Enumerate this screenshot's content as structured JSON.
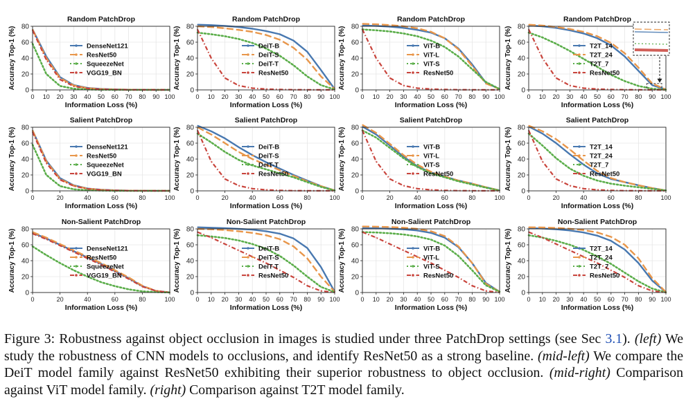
{
  "figure": {
    "x_axis_label": "Information Loss (%)",
    "y_axis_label": "Accuracy Top-1 (%)",
    "row_titles": [
      "Random PatchDrop",
      "Salient PatchDrop",
      "Non-Salient PatchDrop"
    ],
    "x_ticks": [
      0,
      10,
      20,
      30,
      40,
      50,
      60,
      70,
      80,
      90,
      100
    ],
    "x_ticks_coarse": [
      0,
      20,
      40,
      60,
      80,
      100
    ],
    "y_ticks": [
      0,
      20,
      40,
      60,
      80
    ],
    "colors": {
      "cnn_top": "#4878b0",
      "cnn_second": "#e8964a",
      "cnn_third": "#5aad49",
      "resnet_red": "#c9443c"
    }
  },
  "chart_data": [
    {
      "type": "line",
      "title": "Random PatchDrop",
      "group": "CNN",
      "xlabel": "Information Loss (%)",
      "ylabel": "Accuracy Top-1 (%)",
      "xlim": [
        0,
        100
      ],
      "ylim": [
        0,
        80
      ],
      "x": [
        0,
        10,
        20,
        30,
        40,
        50,
        60,
        70,
        80,
        90,
        100
      ],
      "series": [
        {
          "name": "DenseNet121",
          "values": [
            76,
            42,
            16,
            6,
            2.5,
            1.2,
            0.6,
            0.3,
            0.2,
            0.1,
            0.1
          ]
        },
        {
          "name": "ResNet50",
          "values": [
            76,
            40,
            15,
            5.5,
            2.2,
            1,
            0.5,
            0.3,
            0.2,
            0.1,
            0.1
          ]
        },
        {
          "name": "SqueezeNet",
          "values": [
            58,
            20,
            5,
            1.5,
            0.6,
            0.3,
            0.2,
            0.1,
            0.1,
            0.1,
            0.1
          ]
        },
        {
          "name": "VGG19_BN",
          "values": [
            75,
            38,
            13,
            4.5,
            1.8,
            0.8,
            0.4,
            0.2,
            0.1,
            0.1,
            0.1
          ]
        }
      ]
    },
    {
      "type": "line",
      "title": "Random PatchDrop",
      "group": "DeiT",
      "xlabel": "Information Loss (%)",
      "ylabel": "Accuracy Top-1 (%)",
      "xlim": [
        0,
        100
      ],
      "ylim": [
        0,
        80
      ],
      "x": [
        0,
        10,
        20,
        30,
        40,
        50,
        60,
        70,
        80,
        90,
        100
      ],
      "series": [
        {
          "name": "DeiT-B",
          "values": [
            82,
            81.5,
            80.5,
            79,
            77,
            74,
            70,
            62,
            48,
            25,
            1
          ]
        },
        {
          "name": "DeiT-S",
          "values": [
            80,
            79,
            77.5,
            75.5,
            73,
            69,
            63,
            53,
            38,
            17,
            1
          ]
        },
        {
          "name": "DeiT-T",
          "values": [
            72,
            70,
            67.5,
            64,
            59,
            52,
            43,
            31,
            17,
            6,
            0.5
          ]
        },
        {
          "name": "ResNet50",
          "values": [
            76,
            40,
            15,
            5.5,
            2.2,
            1,
            0.5,
            0.3,
            0.2,
            0.1,
            0.1
          ]
        }
      ]
    },
    {
      "type": "line",
      "title": "Random PatchDrop",
      "group": "ViT",
      "xlabel": "Information Loss (%)",
      "ylabel": "Accuracy Top-1 (%)",
      "xlim": [
        0,
        100
      ],
      "ylim": [
        0,
        80
      ],
      "x": [
        0,
        10,
        20,
        30,
        40,
        50,
        60,
        70,
        80,
        90,
        100
      ],
      "series": [
        {
          "name": "ViT-B",
          "values": [
            81,
            80.5,
            79.5,
            78,
            75.5,
            72,
            65,
            52,
            32,
            9,
            1
          ]
        },
        {
          "name": "ViT-L",
          "values": [
            83,
            82.5,
            81.5,
            80,
            77.5,
            73,
            65,
            51,
            30,
            8,
            1
          ]
        },
        {
          "name": "ViT-S",
          "values": [
            76,
            75,
            73.5,
            71,
            67.5,
            62,
            54,
            42,
            26,
            10,
            1
          ]
        },
        {
          "name": "ResNet50",
          "values": [
            76,
            40,
            15,
            5.5,
            2.2,
            1,
            0.5,
            0.3,
            0.2,
            0.1,
            0.1
          ]
        }
      ]
    },
    {
      "type": "line",
      "title": "Random PatchDrop",
      "group": "T2T",
      "xlabel": "Information Loss (%)",
      "ylabel": "Accuracy Top-1 (%)",
      "xlim": [
        0,
        100
      ],
      "ylim": [
        0,
        80
      ],
      "x": [
        0,
        10,
        20,
        30,
        40,
        50,
        60,
        70,
        80,
        90,
        100
      ],
      "series": [
        {
          "name": "T2T_14",
          "values": [
            81,
            80,
            78,
            75,
            71,
            65,
            56,
            42,
            24,
            6,
            0.5
          ]
        },
        {
          "name": "T2T_24",
          "values": [
            82,
            81,
            79,
            76.5,
            73,
            67.5,
            59,
            46,
            28,
            8,
            0.5
          ]
        },
        {
          "name": "T2T_7",
          "values": [
            72,
            66,
            58,
            49,
            39,
            29,
            19,
            11,
            5,
            1.5,
            0.2
          ]
        },
        {
          "name": "ResNet50",
          "values": [
            76,
            40,
            15,
            5.5,
            2.2,
            1,
            0.5,
            0.3,
            0.2,
            0.1,
            0.1
          ]
        }
      ]
    },
    {
      "type": "line",
      "title": "Salient PatchDrop",
      "group": "CNN",
      "xlabel": "Information Loss (%)",
      "ylabel": "Accuracy Top-1 (%)",
      "xlim": [
        0,
        100
      ],
      "ylim": [
        0,
        80
      ],
      "x": [
        0,
        10,
        20,
        30,
        40,
        50,
        60,
        70,
        80,
        90,
        100
      ],
      "series": [
        {
          "name": "DenseNet121",
          "values": [
            76,
            38,
            16,
            7,
            3,
            1.5,
            0.7,
            0.3,
            0.2,
            0.1,
            0.1
          ]
        },
        {
          "name": "ResNet50",
          "values": [
            76,
            37,
            15,
            6.5,
            2.8,
            1.3,
            0.6,
            0.3,
            0.2,
            0.1,
            0.1
          ]
        },
        {
          "name": "SqueezeNet",
          "values": [
            58,
            20,
            6,
            2,
            0.8,
            0.4,
            0.2,
            0.1,
            0.1,
            0.1,
            0.1
          ]
        },
        {
          "name": "VGG19_BN",
          "values": [
            74,
            35,
            14,
            6,
            2.5,
            1.2,
            0.5,
            0.3,
            0.2,
            0.1,
            0.1
          ]
        }
      ]
    },
    {
      "type": "line",
      "title": "Salient PatchDrop",
      "group": "DeiT",
      "xlabel": "Information Loss (%)",
      "ylabel": "Accuracy Top-1 (%)",
      "xlim": [
        0,
        100
      ],
      "ylim": [
        0,
        80
      ],
      "x": [
        0,
        10,
        20,
        30,
        40,
        50,
        60,
        70,
        80,
        90,
        100
      ],
      "series": [
        {
          "name": "DeiT-B",
          "values": [
            82,
            75,
            66,
            55,
            45,
            36,
            28,
            20,
            13,
            6,
            0.5
          ]
        },
        {
          "name": "DeiT-S",
          "values": [
            80,
            71,
            60,
            49,
            40,
            33,
            26,
            19,
            12,
            6,
            0.5
          ]
        },
        {
          "name": "DeiT-T",
          "values": [
            72,
            61,
            49,
            39,
            32,
            27,
            22,
            17,
            11,
            5,
            0.5
          ]
        },
        {
          "name": "ResNet50",
          "values": [
            76,
            37,
            15,
            6.5,
            2.8,
            1.3,
            0.6,
            0.3,
            0.2,
            0.1,
            0.1
          ]
        }
      ]
    },
    {
      "type": "line",
      "title": "Salient PatchDrop",
      "group": "ViT",
      "xlabel": "Information Loss (%)",
      "ylabel": "Accuracy Top-1 (%)",
      "xlim": [
        0,
        100
      ],
      "ylim": [
        0,
        80
      ],
      "x": [
        0,
        10,
        20,
        30,
        40,
        50,
        60,
        70,
        80,
        90,
        100
      ],
      "series": [
        {
          "name": "ViT-B",
          "values": [
            81,
            71,
            57,
            43,
            31,
            23,
            18,
            13,
            9,
            4.5,
            0.5
          ]
        },
        {
          "name": "ViT-L",
          "values": [
            83,
            73,
            59,
            45,
            33,
            24,
            18,
            13,
            9,
            4.5,
            0.5
          ]
        },
        {
          "name": "ViT-S",
          "values": [
            76,
            67,
            54,
            41,
            30,
            22,
            17,
            12,
            8,
            4,
            0.5
          ]
        },
        {
          "name": "ResNet50",
          "values": [
            76,
            37,
            15,
            6.5,
            2.8,
            1.3,
            0.6,
            0.3,
            0.2,
            0.1,
            0.1
          ]
        }
      ]
    },
    {
      "type": "line",
      "title": "Salient PatchDrop",
      "group": "T2T",
      "xlabel": "Information Loss (%)",
      "ylabel": "Accuracy Top-1 (%)",
      "xlim": [
        0,
        100
      ],
      "ylim": [
        0,
        80
      ],
      "x": [
        0,
        10,
        20,
        30,
        40,
        50,
        60,
        70,
        80,
        90,
        100
      ],
      "series": [
        {
          "name": "T2T_14",
          "values": [
            81,
            72,
            60,
            46,
            33,
            22,
            15,
            11,
            7,
            3.5,
            0.5
          ]
        },
        {
          "name": "T2T_24",
          "values": [
            82,
            75,
            65,
            52,
            38,
            25,
            16,
            11,
            7,
            3.5,
            0.5
          ]
        },
        {
          "name": "T2T_7",
          "values": [
            72,
            57,
            41,
            28,
            19,
            13,
            9,
            6.5,
            4.5,
            2.5,
            0.5
          ]
        },
        {
          "name": "ResNet50",
          "values": [
            76,
            37,
            15,
            6.5,
            2.8,
            1.3,
            0.6,
            0.3,
            0.2,
            0.1,
            0.1
          ]
        }
      ]
    },
    {
      "type": "line",
      "title": "Non-Salient PatchDrop",
      "group": "CNN",
      "xlabel": "Information Loss (%)",
      "ylabel": "Accuracy Top-1 (%)",
      "xlim": [
        0,
        100
      ],
      "ylim": [
        0,
        80
      ],
      "x": [
        0,
        10,
        20,
        30,
        40,
        50,
        60,
        70,
        80,
        90,
        100
      ],
      "series": [
        {
          "name": "DenseNet121",
          "values": [
            75,
            68,
            60,
            52,
            44,
            36,
            27,
            18,
            8,
            2,
            0.2
          ]
        },
        {
          "name": "ResNet50",
          "values": [
            76,
            69,
            61,
            53,
            45,
            37,
            28,
            19,
            8.5,
            2,
            0.2
          ]
        },
        {
          "name": "SqueezeNet",
          "values": [
            58,
            47,
            37,
            28,
            20,
            13,
            8,
            4,
            1.5,
            0.5,
            0.1
          ]
        },
        {
          "name": "VGG19_BN",
          "values": [
            74,
            67,
            59,
            51,
            43,
            35,
            26,
            17,
            7.5,
            2,
            0.2
          ]
        }
      ]
    },
    {
      "type": "line",
      "title": "Non-Salient PatchDrop",
      "group": "DeiT",
      "xlabel": "Information Loss (%)",
      "ylabel": "Accuracy Top-1 (%)",
      "xlim": [
        0,
        100
      ],
      "ylim": [
        0,
        80
      ],
      "x": [
        0,
        10,
        20,
        30,
        40,
        50,
        60,
        70,
        80,
        90,
        100
      ],
      "series": [
        {
          "name": "DeiT-B",
          "values": [
            82,
            81.5,
            81,
            80,
            79,
            77,
            74,
            68,
            56,
            32,
            1
          ]
        },
        {
          "name": "DeiT-S",
          "values": [
            80,
            79.5,
            78.5,
            77,
            75,
            72,
            67,
            58,
            43,
            20,
            1
          ]
        },
        {
          "name": "DeiT-T",
          "values": [
            72,
            70.5,
            68.5,
            65.5,
            61,
            55,
            46,
            34,
            20,
            7,
            0.5
          ]
        },
        {
          "name": "ResNet50",
          "values": [
            76,
            69,
            61,
            53,
            45,
            37,
            28,
            19,
            8.5,
            2,
            0.2
          ]
        }
      ]
    },
    {
      "type": "line",
      "title": "Non-Salient PatchDrop",
      "group": "ViT",
      "xlabel": "Information Loss (%)",
      "ylabel": "Accuracy Top-1 (%)",
      "xlim": [
        0,
        100
      ],
      "ylim": [
        0,
        80
      ],
      "x": [
        0,
        10,
        20,
        30,
        40,
        50,
        60,
        70,
        80,
        90,
        100
      ],
      "series": [
        {
          "name": "ViT-B",
          "values": [
            81,
            80.8,
            80.3,
            79.5,
            78,
            75,
            69,
            57,
            37,
            12,
            1
          ]
        },
        {
          "name": "ViT-L",
          "values": [
            83,
            82.8,
            82.3,
            81.5,
            80,
            77,
            71,
            58,
            37,
            11,
            1
          ]
        },
        {
          "name": "ViT-S",
          "values": [
            76,
            75.5,
            74.5,
            73,
            70.5,
            66.5,
            59,
            46,
            28,
            9,
            1
          ]
        },
        {
          "name": "ResNet50",
          "values": [
            76,
            69,
            61,
            53,
            45,
            37,
            28,
            19,
            8.5,
            2,
            0.2
          ]
        }
      ]
    },
    {
      "type": "line",
      "title": "Non-Salient PatchDrop",
      "group": "T2T",
      "xlabel": "Information Loss (%)",
      "ylabel": "Accuracy Top-1 (%)",
      "xlim": [
        0,
        100
      ],
      "ylim": [
        0,
        80
      ],
      "x": [
        0,
        10,
        20,
        30,
        40,
        50,
        60,
        70,
        80,
        90,
        100
      ],
      "series": [
        {
          "name": "T2T_14",
          "values": [
            81,
            80.5,
            79.5,
            78,
            75.5,
            71.5,
            65,
            54,
            37,
            15,
            0.5
          ]
        },
        {
          "name": "T2T_24",
          "values": [
            82,
            81.8,
            81.2,
            80.2,
            78.5,
            75.5,
            70,
            60,
            43,
            18,
            0.5
          ]
        },
        {
          "name": "T2T_7",
          "values": [
            72,
            69,
            65,
            60,
            53.5,
            45.5,
            36,
            25,
            14,
            5,
            0.2
          ]
        },
        {
          "name": "ResNet50",
          "values": [
            76,
            69,
            61,
            53,
            45,
            37,
            28,
            19,
            8.5,
            2,
            0.2
          ]
        }
      ]
    }
  ],
  "caption": {
    "p1": "Figure 3: Robustness against object occlusion in images is studied under three PatchDrop settings (see Sec ",
    "ref": "3.1",
    "p2": "). ",
    "left": "(left)",
    "p3": " We study the robustness of CNN models to occlusions, and identify ResNet50 as a strong baseline. ",
    "midleft": "(mid-left)",
    "p4": " We compare the DeiT model family against ResNet50 exhibiting their superior robustness to object occlusion. ",
    "midright": "(mid-right)",
    "p5": " Comparison against ViT model family. ",
    "right": "(right)",
    "p6": " Comparison against T2T model family."
  }
}
